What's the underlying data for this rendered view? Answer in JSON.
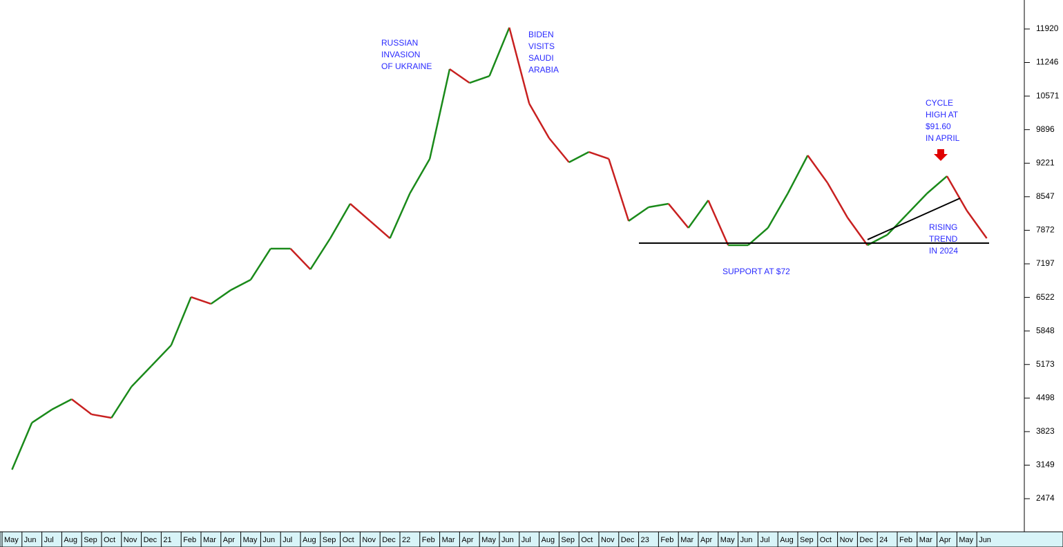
{
  "chart_data": {
    "type": "line",
    "categories": [
      "May",
      "Jun",
      "Jul",
      "Aug",
      "Sep",
      "Oct",
      "Nov",
      "Dec",
      "21",
      "Feb",
      "Mar",
      "Apr",
      "May",
      "Jun",
      "Jul",
      "Aug",
      "Sep",
      "Oct",
      "Nov",
      "Dec",
      "22",
      "Feb",
      "Mar",
      "Apr",
      "May",
      "Jun",
      "Jul",
      "Aug",
      "Sep",
      "Oct",
      "Nov",
      "Dec",
      "23",
      "Feb",
      "Mar",
      "Apr",
      "May",
      "Jun",
      "Jul",
      "Aug",
      "Sep",
      "Oct",
      "Nov",
      "Dec",
      "24",
      "Feb",
      "Mar",
      "Apr",
      "May",
      "Jun"
    ],
    "series": [
      {
        "up_color": "#1a8a1a",
        "down_color": "#c82020",
        "values": [
          3058,
          4002,
          4266,
          4475,
          4170,
          4100,
          4725,
          5142,
          5559,
          6530,
          6392,
          6670,
          6878,
          7503,
          7503,
          7086,
          7711,
          8406,
          8059,
          7711,
          8614,
          9309,
          11114,
          10836,
          10975,
          11948,
          10420,
          9725,
          9239,
          9447,
          9309,
          8059,
          8336,
          8406,
          7920,
          8475,
          7572,
          7572,
          7920,
          8614,
          9378,
          8823,
          8128,
          7572,
          7781,
          8197,
          8614,
          8961,
          8267,
          7711
        ]
      }
    ],
    "ylim": [
      1808,
      12503
    ],
    "yticks": [
      2474,
      3149,
      3823,
      4498,
      5173,
      5848,
      6522,
      7197,
      7872,
      8547,
      9221,
      9896,
      10571,
      11246,
      11920
    ],
    "support": {
      "value": 7614,
      "label": "SUPPORT AT $72"
    },
    "trend": {
      "values": [
        7684,
        8517
      ],
      "label": [
        "RISING",
        "TREND",
        "IN 2024"
      ]
    },
    "annotations": [
      {
        "lines": [
          "RUSSIAN",
          "INVASION",
          "OF UKRAINE"
        ]
      },
      {
        "lines": [
          "BIDEN",
          "VISITS",
          "SAUDI",
          "ARABIA"
        ]
      },
      {
        "lines": [
          "CYCLE",
          "HIGH AT",
          "$91.60",
          "IN APRIL"
        ]
      }
    ]
  }
}
